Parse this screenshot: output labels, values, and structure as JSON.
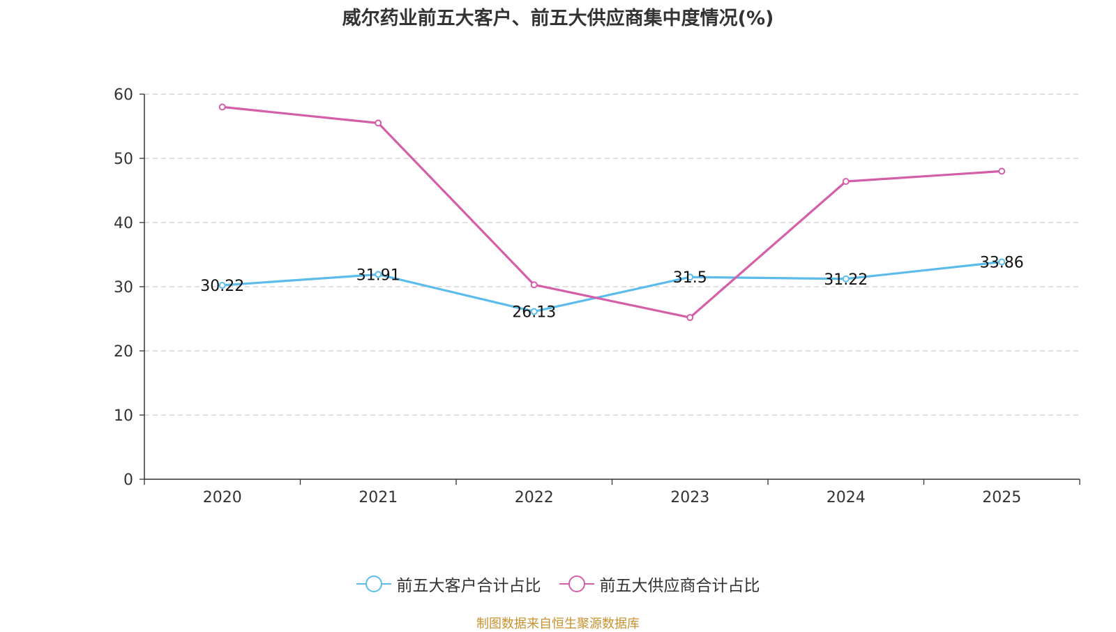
{
  "chart_data": {
    "type": "line",
    "title": "威尔药业前五大客户、前五大供应商集中度情况(%)",
    "categories": [
      "2020",
      "2021",
      "2022",
      "2023",
      "2024",
      "2025"
    ],
    "ylim": [
      0,
      60
    ],
    "yticks": [
      0,
      10,
      20,
      30,
      40,
      50,
      60
    ],
    "grid": true,
    "legend_position": "bottom",
    "series": [
      {
        "name": "前五大客户合计占比",
        "values": [
          30.22,
          31.91,
          26.13,
          31.5,
          31.22,
          33.86
        ],
        "labels": [
          "30.22",
          "31.91",
          "26.13",
          "31.5",
          "31.22",
          "33.86"
        ],
        "color": "#5bbcec",
        "show_labels": true
      },
      {
        "name": "前五大供应商合计占比",
        "values": [
          58.0,
          55.5,
          30.3,
          25.2,
          46.4,
          48.0
        ],
        "color": "#d45fa8",
        "show_labels": false
      }
    ]
  },
  "source": "制图数据来自恒生聚源数据库"
}
